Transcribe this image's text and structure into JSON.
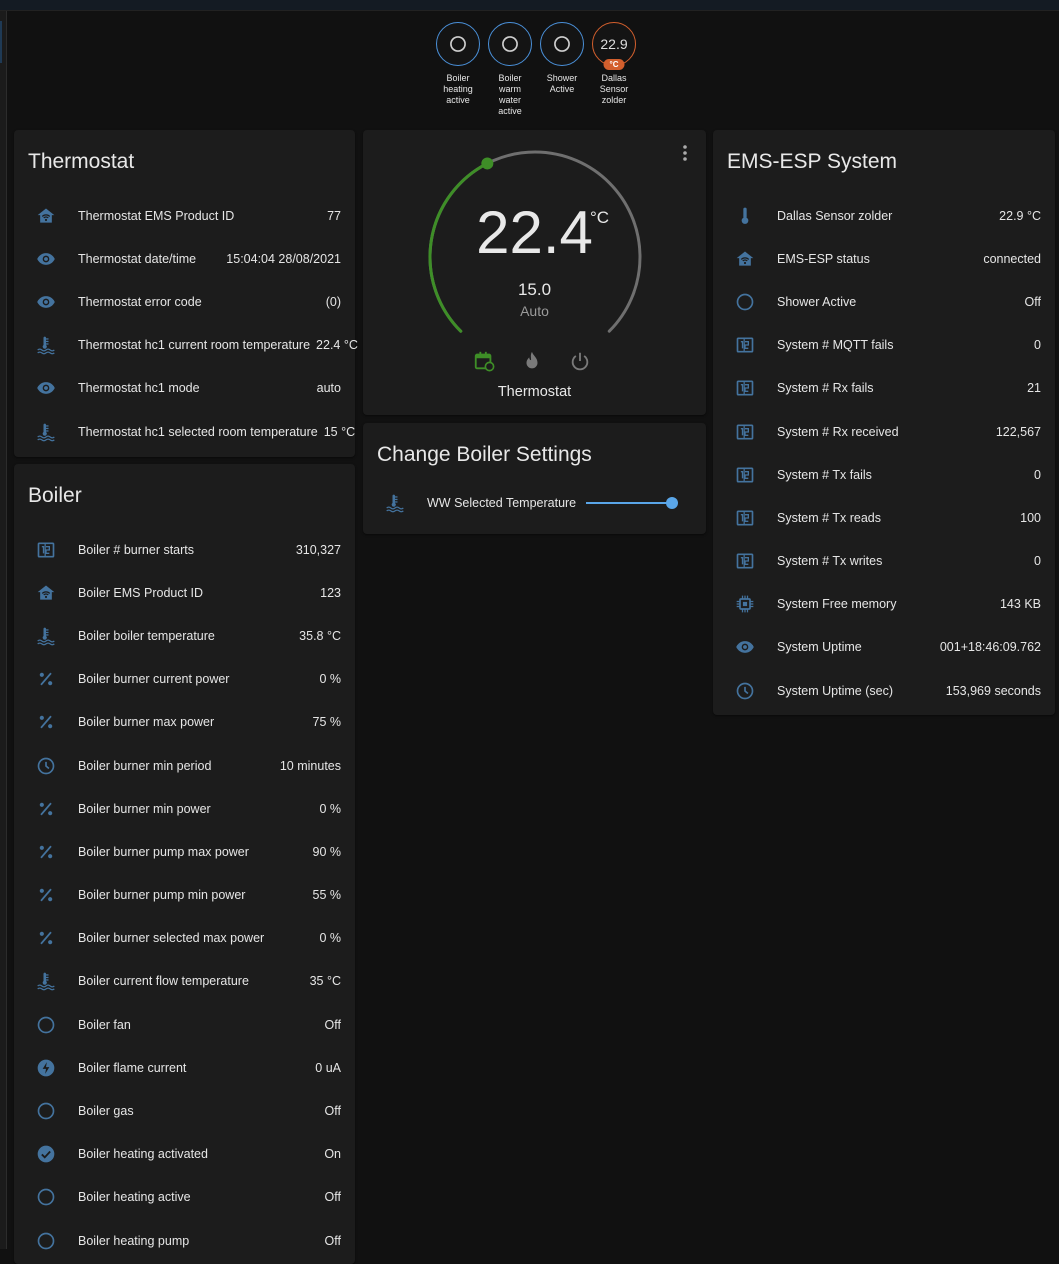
{
  "badges": [
    {
      "label": "Boiler heating active",
      "icon": "circle-outline-icon"
    },
    {
      "label": "Boiler warm water active",
      "icon": "circle-outline-icon"
    },
    {
      "label": "Shower Active",
      "icon": "circle-outline-icon"
    },
    {
      "label": "Dallas Sensor zolder",
      "value": "22.9",
      "unit": "°C"
    }
  ],
  "colors": {
    "accent": "#44739e",
    "badge_ring": "#4a90d9",
    "sensor_badge": "#d35f2d",
    "heat_green": "#3e8e27",
    "slider": "#5aa6e8"
  },
  "thermostat_card": {
    "title": "Thermostat",
    "rows": [
      {
        "icon": "home-wifi",
        "name": "Thermostat EMS Product ID",
        "value": "77"
      },
      {
        "icon": "eye",
        "name": "Thermostat date/time",
        "value": "15:04:04 28/08/2021"
      },
      {
        "icon": "eye",
        "name": "Thermostat error code",
        "value": "(0)"
      },
      {
        "icon": "thermo-water",
        "name": "Thermostat hc1 current room temperature",
        "value": "22.4 °C"
      },
      {
        "icon": "eye",
        "name": "Thermostat hc1 mode",
        "value": "auto"
      },
      {
        "icon": "thermo-water",
        "name": "Thermostat hc1 selected room temperature",
        "value": "15 °C"
      }
    ]
  },
  "boiler_card": {
    "title": "Boiler",
    "rows": [
      {
        "icon": "counter",
        "name": "Boiler # burner starts",
        "value": "310,327"
      },
      {
        "icon": "home-wifi",
        "name": "Boiler EMS Product ID",
        "value": "123"
      },
      {
        "icon": "thermo-water",
        "name": "Boiler boiler temperature",
        "value": "35.8 °C"
      },
      {
        "icon": "percent",
        "name": "Boiler burner current power",
        "value": "0 %"
      },
      {
        "icon": "percent",
        "name": "Boiler burner max power",
        "value": "75 %"
      },
      {
        "icon": "clock",
        "name": "Boiler burner min period",
        "value": "10 minutes"
      },
      {
        "icon": "percent",
        "name": "Boiler burner min power",
        "value": "0 %"
      },
      {
        "icon": "percent",
        "name": "Boiler burner pump max power",
        "value": "90 %"
      },
      {
        "icon": "percent",
        "name": "Boiler burner pump min power",
        "value": "55 %"
      },
      {
        "icon": "percent",
        "name": "Boiler burner selected max power",
        "value": "0 %"
      },
      {
        "icon": "thermo-water",
        "name": "Boiler current flow temperature",
        "value": "35 °C"
      },
      {
        "icon": "circle",
        "name": "Boiler fan",
        "value": "Off"
      },
      {
        "icon": "flash",
        "name": "Boiler flame current",
        "value": "0 uA"
      },
      {
        "icon": "circle",
        "name": "Boiler gas",
        "value": "Off"
      },
      {
        "icon": "check-circle",
        "name": "Boiler heating activated",
        "value": "On"
      },
      {
        "icon": "circle",
        "name": "Boiler heating active",
        "value": "Off"
      },
      {
        "icon": "circle",
        "name": "Boiler heating pump",
        "value": "Off"
      }
    ]
  },
  "climate": {
    "current": "22.4",
    "unit": "°C",
    "target": "15.0",
    "target_value": 15.0,
    "mode": "Auto",
    "name": "Thermostat",
    "modes": [
      "auto",
      "heat",
      "off"
    ],
    "active_mode": "auto"
  },
  "boiler_settings": {
    "title": "Change Boiler Settings",
    "rows": [
      {
        "icon": "thermo-water",
        "name": "WW Selected Temperature",
        "slider_fraction": 1.0
      }
    ]
  },
  "ems_card": {
    "title": "EMS-ESP System",
    "rows": [
      {
        "icon": "thermometer",
        "name": "Dallas Sensor zolder",
        "value": "22.9 °C"
      },
      {
        "icon": "home-wifi",
        "name": "EMS-ESP status",
        "value": "connected"
      },
      {
        "icon": "circle",
        "name": "Shower Active",
        "value": "Off"
      },
      {
        "icon": "counter",
        "name": "System # MQTT fails",
        "value": "0"
      },
      {
        "icon": "counter",
        "name": "System # Rx fails",
        "value": "21"
      },
      {
        "icon": "counter",
        "name": "System # Rx received",
        "value": "122,567"
      },
      {
        "icon": "counter",
        "name": "System # Tx fails",
        "value": "0"
      },
      {
        "icon": "counter",
        "name": "System # Tx reads",
        "value": "100"
      },
      {
        "icon": "counter",
        "name": "System # Tx writes",
        "value": "0"
      },
      {
        "icon": "chip",
        "name": "System Free memory",
        "value": "143 KB"
      },
      {
        "icon": "eye",
        "name": "System Uptime",
        "value": "001+18:46:09.762"
      },
      {
        "icon": "clock",
        "name": "System Uptime (sec)",
        "value": "153,969 seconds"
      }
    ]
  }
}
